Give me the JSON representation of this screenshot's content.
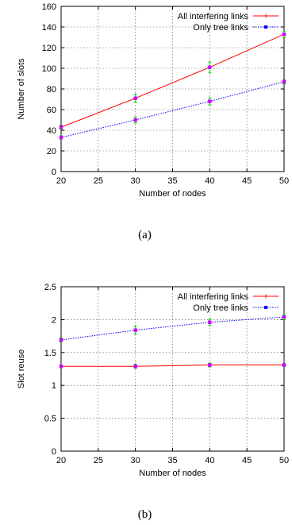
{
  "chart_data": [
    {
      "type": "line",
      "caption": "(a)",
      "xlabel": "Number of nodes",
      "ylabel": "Number of slots",
      "xlim": [
        20,
        50
      ],
      "ylim": [
        0,
        160
      ],
      "xticks": [
        20,
        25,
        30,
        35,
        40,
        45,
        50
      ],
      "yticks": [
        0,
        20,
        40,
        60,
        80,
        100,
        120,
        140,
        160
      ],
      "grid": true,
      "legend_position": "top-right",
      "x": [
        20,
        30,
        40,
        50
      ],
      "series": [
        {
          "name": "All interfering links",
          "color": "#ff0000",
          "dash": "solid",
          "marker": "plus",
          "values": [
            43,
            71,
            101,
            133
          ],
          "errors": [
            2,
            4,
            5,
            3
          ]
        },
        {
          "name": "Only tree links",
          "color": "#0000ff",
          "dash": "dotted",
          "marker": "star",
          "values": [
            33,
            50,
            68,
            87
          ],
          "errors": [
            1.5,
            3,
            3.5,
            2
          ]
        }
      ]
    },
    {
      "type": "line",
      "caption": "(b)",
      "xlabel": "Number of nodes",
      "ylabel": "Slot reuse",
      "xlim": [
        20,
        50
      ],
      "ylim": [
        0,
        2.5
      ],
      "xticks": [
        20,
        25,
        30,
        35,
        40,
        45,
        50
      ],
      "yticks": [
        0,
        0.5,
        1,
        1.5,
        2,
        2.5
      ],
      "grid": true,
      "legend_position": "top-right",
      "x": [
        20,
        30,
        40,
        50
      ],
      "series": [
        {
          "name": "All interfering links",
          "color": "#ff0000",
          "dash": "solid",
          "marker": "plus",
          "values": [
            1.29,
            1.29,
            1.31,
            1.31
          ],
          "errors": [
            0.02,
            0.03,
            0.03,
            0.02
          ]
        },
        {
          "name": "Only tree links",
          "color": "#0000ff",
          "dash": "dotted",
          "marker": "star",
          "values": [
            1.69,
            1.84,
            1.96,
            2.04
          ],
          "errors": [
            0.03,
            0.06,
            0.05,
            0.04
          ]
        }
      ]
    }
  ],
  "error_bar_color": "#00cc00",
  "marker_color": "#cc00ff"
}
